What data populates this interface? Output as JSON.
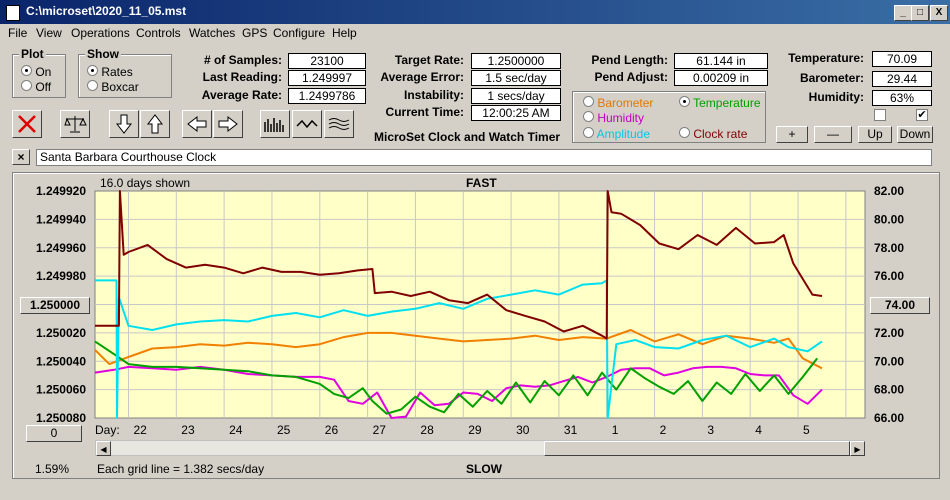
{
  "window": {
    "title": "C:\\microset\\2020_11_05.mst",
    "minimize": "_",
    "maximize": "□",
    "close": "X"
  },
  "menu": [
    "File",
    "View",
    "Operations",
    "Controls",
    "Watches",
    "GPS",
    "Configure",
    "Help"
  ],
  "plot_group": {
    "caption": "Plot",
    "options": [
      "On",
      "Off"
    ],
    "selected": "On"
  },
  "show_group": {
    "caption": "Show",
    "options": [
      "Rates",
      "Boxcar"
    ],
    "selected": "Rates"
  },
  "stats": {
    "samples_label": "# of Samples:",
    "samples": "23100",
    "last_label": "Last Reading:",
    "last": "1.249997",
    "avg_label": "Average Rate:",
    "avg": "1.2499786",
    "target_label": "Target Rate:",
    "target": "1.2500000",
    "avgerr_label": "Average Error:",
    "avgerr": "1.5 sec/day",
    "instab_label": "Instability:",
    "instab": "1 secs/day",
    "time_label": "Current Time:",
    "time": "12:00:25 AM",
    "pendlen_label": "Pend Length:",
    "pendlen": "61.144 in",
    "pendadj_label": "Pend Adjust:",
    "pendadj": "0.00209 in",
    "temp_label": "Temperature:",
    "temp": "70.09",
    "baro_label": "Barometer:",
    "baro": "29.44",
    "hum_label": "Humidity:",
    "hum": "63%"
  },
  "subtitle": "MicroSet Clock and Watch Timer",
  "overlay_options": [
    {
      "label": "Barometer",
      "color": "#e07800",
      "selected": false
    },
    {
      "label": "Temperature",
      "color": "#00a000",
      "selected": true
    },
    {
      "label": "Humidity",
      "color": "#c000c0",
      "selected": false
    },
    {
      "label": "Clock rate",
      "color": "#800000",
      "selected": false
    },
    {
      "label": "Amplitude",
      "color": "#00c8e0",
      "selected": false
    }
  ],
  "scale_buttons": [
    "+",
    "—",
    "Up",
    "Down"
  ],
  "description": "Santa Barbara Courthouse Clock",
  "desc_close": "×",
  "chart_header": {
    "days_shown": "16.0 days shown",
    "fast": "FAST",
    "slow": "SLOW",
    "grid_note": "Each grid line = 1.382 secs/day",
    "pct": "1.59%",
    "day_prefix": "Day:"
  },
  "left_marker": "1.250000",
  "right_marker": "74.00",
  "bottom_left_button": "0",
  "colors": {
    "rate": "#800000",
    "temperature": "#00a000",
    "humidity": "#e000e0",
    "barometer": "#f08000",
    "amplitude": "#00e0f0",
    "plot_bg": "#ffffc8"
  },
  "chart_data": {
    "type": "line",
    "x_label": "Day",
    "x_ticks": [
      "22",
      "23",
      "24",
      "25",
      "26",
      "27",
      "28",
      "29",
      "30",
      "31",
      "1",
      "2",
      "3",
      "4",
      "5"
    ],
    "y_left_ticks": [
      "1.249920",
      "1.249940",
      "1.249960",
      "1.249980",
      "1.250000",
      "1.250020",
      "1.250040",
      "1.250060",
      "1.250080"
    ],
    "y_left_range": [
      1.24992,
      1.25008
    ],
    "y_right_ticks": [
      "82.00",
      "80.00",
      "78.00",
      "76.00",
      "74.00",
      "72.00",
      "70.00",
      "68.00",
      "66.00"
    ],
    "y_right_range": [
      66,
      82
    ],
    "x_range": [
      21.3,
      37.4
    ],
    "series": [
      {
        "name": "Clock rate",
        "key": "rate",
        "axis": "left",
        "x": [
          21.3,
          21.8,
          21.82,
          21.9,
          22.0,
          22.4,
          22.8,
          23.2,
          23.6,
          24.0,
          24.4,
          24.8,
          25.2,
          25.6,
          26.0,
          26.4,
          26.8,
          27.1,
          27.15,
          27.5,
          27.9,
          28.3,
          28.7,
          29.1,
          29.5,
          29.9,
          30.3,
          30.7,
          31.1,
          31.5,
          31.9,
          32.0,
          32.02,
          32.1,
          32.3,
          32.7,
          33.1,
          33.5,
          33.9,
          34.3,
          34.7,
          35.1,
          35.5,
          35.7,
          35.9,
          36.1,
          36.3,
          36.5
        ],
        "y": [
          1.250015,
          1.250015,
          1.249915,
          1.249965,
          1.249963,
          1.249958,
          1.249968,
          1.249974,
          1.249972,
          1.249974,
          1.249978,
          1.249974,
          1.249977,
          1.249977,
          1.249979,
          1.249978,
          1.249976,
          1.249975,
          1.249992,
          1.249991,
          1.249994,
          1.249991,
          1.249997,
          1.249999,
          1.249993,
          1.250004,
          1.250008,
          1.250012,
          1.250019,
          1.250015,
          1.250022,
          1.250024,
          1.249917,
          1.249935,
          1.249936,
          1.249944,
          1.249957,
          1.249961,
          1.249951,
          1.249958,
          1.249946,
          1.249957,
          1.249956,
          1.249951,
          1.249971,
          1.249982,
          1.249993,
          1.249994
        ]
      },
      {
        "name": "Amplitude",
        "key": "amplitude",
        "axis": "left",
        "x": [
          21.3,
          21.75,
          21.76,
          21.8,
          22.0,
          22.5,
          23.0,
          23.5,
          24.0,
          24.5,
          25.0,
          25.5,
          26.0,
          26.5,
          27.0,
          27.5,
          28.0,
          28.5,
          29.0,
          29.5,
          30.0,
          30.5,
          31.0,
          31.5,
          31.9,
          32.0,
          32.02,
          32.2,
          32.6,
          33.0,
          33.5,
          34.0,
          34.5,
          35.0,
          35.5,
          35.8,
          36.2,
          36.5
        ],
        "y": [
          1.249983,
          1.249983,
          1.25008,
          1.249995,
          1.250015,
          1.250018,
          1.250014,
          1.250012,
          1.250011,
          1.250012,
          1.250008,
          1.250006,
          1.250009,
          1.250004,
          1.250008,
          1.250005,
          1.250003,
          1.249999,
          1.250003,
          1.249996,
          1.249993,
          1.24999,
          1.249993,
          1.249986,
          1.249985,
          1.249983,
          1.25008,
          1.250028,
          1.250025,
          1.25003,
          1.250031,
          1.250025,
          1.250022,
          1.25003,
          1.250024,
          1.25003,
          1.250033,
          1.250026
        ]
      },
      {
        "name": "Temperature",
        "key": "temperature",
        "axis": "right",
        "x": [
          21.3,
          21.7,
          22.0,
          22.5,
          23.0,
          23.5,
          24.0,
          24.5,
          25.0,
          25.5,
          26.0,
          26.3,
          26.6,
          26.9,
          27.1,
          27.4,
          27.7,
          28.0,
          28.3,
          28.6,
          28.9,
          29.2,
          29.5,
          29.8,
          30.1,
          30.4,
          30.7,
          31.0,
          31.3,
          31.6,
          31.9,
          32.2,
          32.5,
          32.8,
          33.1,
          33.4,
          33.7,
          34.0,
          34.3,
          34.6,
          34.9,
          35.2,
          35.5,
          35.8,
          36.1,
          36.4
        ],
        "y": [
          71.4,
          70.5,
          69.8,
          69.6,
          69.6,
          69.5,
          69.4,
          69.3,
          69.0,
          68.9,
          68.4,
          67.7,
          67.4,
          68.1,
          67.2,
          66.3,
          66.6,
          67.5,
          66.8,
          66.4,
          67.7,
          66.8,
          67.9,
          67.0,
          68.5,
          67.1,
          68.6,
          67.6,
          69.0,
          67.6,
          69.2,
          68.0,
          69.5,
          68.8,
          68.2,
          67.7,
          68.6,
          67.2,
          68.5,
          67.7,
          69.1,
          67.9,
          69.0,
          67.7,
          68.9,
          70.2
        ]
      },
      {
        "name": "Humidity",
        "key": "humidity",
        "axis": "right",
        "x": [
          21.3,
          21.7,
          22.0,
          22.5,
          23.0,
          23.5,
          24.0,
          24.5,
          25.0,
          25.5,
          26.0,
          26.3,
          26.6,
          26.9,
          27.2,
          27.5,
          27.8,
          28.1,
          28.4,
          28.7,
          29.0,
          29.3,
          29.6,
          29.9,
          30.2,
          30.5,
          30.8,
          31.1,
          31.4,
          31.7,
          32.0,
          32.3,
          32.6,
          32.9,
          33.2,
          33.5,
          33.8,
          34.1,
          34.4,
          34.7,
          35.0,
          35.3,
          35.6,
          35.9,
          36.2,
          36.5
        ],
        "y": [
          69.2,
          69.4,
          69.6,
          69.5,
          69.4,
          69.6,
          69.4,
          69.1,
          69.0,
          68.9,
          68.9,
          68.7,
          67.2,
          67.0,
          67.8,
          66.0,
          66.1,
          67.8,
          66.9,
          67.0,
          67.8,
          67.7,
          67.2,
          68.1,
          68.3,
          68.2,
          68.3,
          68.6,
          68.9,
          68.5,
          68.9,
          69.4,
          69.5,
          69.5,
          69.0,
          69.2,
          69.5,
          69.6,
          69.6,
          69.5,
          69.1,
          69.0,
          69.0,
          67.6,
          67.0,
          68.0
        ]
      },
      {
        "name": "Barometer",
        "key": "barometer",
        "axis": "right",
        "x": [
          21.3,
          21.6,
          22.0,
          22.5,
          23.0,
          23.5,
          24.0,
          24.5,
          25.0,
          25.5,
          26.0,
          26.5,
          27.0,
          27.5,
          28.0,
          28.5,
          29.0,
          29.5,
          30.0,
          30.5,
          31.0,
          31.5,
          32.0,
          32.5,
          33.0,
          33.5,
          34.0,
          34.5,
          35.0,
          35.5,
          35.8,
          36.1,
          36.5
        ],
        "y": [
          70.8,
          69.8,
          70.3,
          70.9,
          71.0,
          71.2,
          71.1,
          71.3,
          71.2,
          71.0,
          71.2,
          71.7,
          72.0,
          72.0,
          71.8,
          71.6,
          71.4,
          71.5,
          71.6,
          71.8,
          71.5,
          71.7,
          71.6,
          72.2,
          71.4,
          71.9,
          71.2,
          71.8,
          71.6,
          71.3,
          71.6,
          70.2,
          69.5
        ]
      }
    ]
  }
}
